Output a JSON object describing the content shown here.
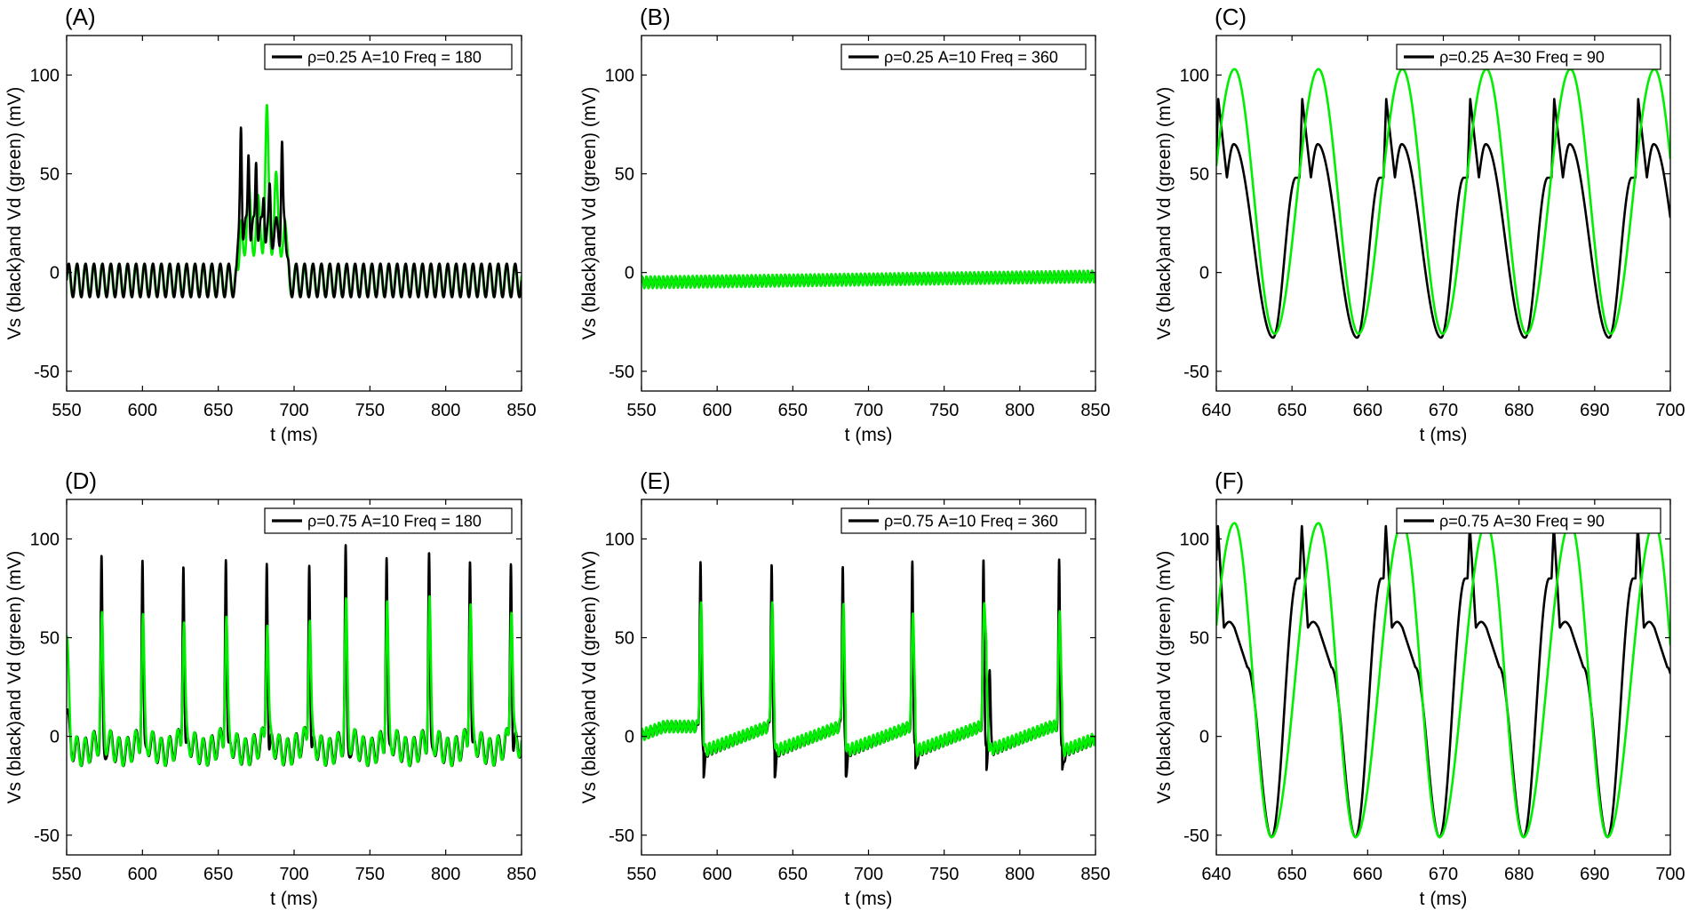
{
  "colors": {
    "vs": "#000000",
    "vd": "#00ee00",
    "axis": "#000000",
    "background": "#ffffff"
  },
  "chart_data": [
    {
      "type": "line",
      "panel": "(A)",
      "legend": "ρ=0.25 A=10 Freq = 180",
      "xlabel": "t (ms)",
      "ylabel": "Vs (black)and Vd (green) (mV)",
      "xlim": [
        550,
        850
      ],
      "ylim": [
        -60,
        120
      ],
      "xticks": [
        "550",
        "600",
        "650",
        "700",
        "750",
        "800",
        "850"
      ],
      "yticks": [
        "-50",
        "0",
        "50",
        "100"
      ],
      "series": [
        {
          "name": "Vs (black)",
          "color": "#000000",
          "description": "subthreshold oscillation around -4 mV, burst of spikes (peaks ~80, 65, 61, 67 mV) between 663 and 696 ms"
        },
        {
          "name": "Vd (green)",
          "color": "#00ee00",
          "description": "subthreshold oscillation around -4 mV, burst with peak ~85 mV at 682 ms"
        }
      ]
    },
    {
      "type": "line",
      "panel": "(B)",
      "legend": "ρ=0.25 A=10 Freq = 360",
      "xlabel": "t (ms)",
      "ylabel": "Vs (black)and Vd (green) (mV)",
      "xlim": [
        550,
        850
      ],
      "ylim": [
        -60,
        120
      ],
      "xticks": [
        "550",
        "600",
        "650",
        "700",
        "750",
        "800",
        "850"
      ],
      "yticks": [
        "-50",
        "0",
        "50",
        "100"
      ],
      "series": [
        {
          "name": "Vs (black)",
          "color": "#000000",
          "description": "fast small oscillation rising slowly from about -5 mV to -2 mV"
        },
        {
          "name": "Vd (green)",
          "color": "#00ee00",
          "description": "fast small oscillation rising slowly from about -5 mV to -2 mV"
        }
      ]
    },
    {
      "type": "line",
      "panel": "(C)",
      "legend": "ρ=0.25 A=30 Freq = 90",
      "xlabel": "t (ms)",
      "ylabel": "Vs (black)and Vd (green) (mV)",
      "xlim": [
        640,
        700
      ],
      "ylim": [
        -60,
        120
      ],
      "xticks": [
        "640",
        "650",
        "660",
        "670",
        "680",
        "690",
        "700"
      ],
      "yticks": [
        "-50",
        "0",
        "50",
        "100"
      ],
      "series": [
        {
          "name": "Vs (black)",
          "color": "#000000",
          "description": "period ~11.1 ms, spike ~88 mV, plateau ~65 mV, minimum ~-33 mV"
        },
        {
          "name": "Vd (green)",
          "color": "#00ee00",
          "description": "period ~11.1 ms, peak ~103 mV, minimum ~-31 mV"
        }
      ]
    },
    {
      "type": "line",
      "panel": "(D)",
      "legend": "ρ=0.75 A=10 Freq = 180",
      "xlabel": "t (ms)",
      "ylabel": "Vs (black)and Vd (green) (mV)",
      "xlim": [
        550,
        850
      ],
      "ylim": [
        -60,
        120
      ],
      "xticks": [
        "550",
        "600",
        "650",
        "700",
        "750",
        "800",
        "850"
      ],
      "yticks": [
        "-50",
        "0",
        "50",
        "100"
      ],
      "series": [
        {
          "name": "Vs (black)",
          "color": "#000000",
          "spike_times_ms": [
            573,
            600,
            627,
            655,
            682,
            710,
            734,
            761,
            789,
            816,
            843
          ],
          "description": "spikes ~87-95 mV over oscillation between -15 and 5 mV"
        },
        {
          "name": "Vd (green)",
          "color": "#00ee00",
          "description": "peaks ~60-70 mV at the same times, oscillation between -15 and 5 mV"
        }
      ]
    },
    {
      "type": "line",
      "panel": "(E)",
      "legend": "ρ=0.75 A=10 Freq = 360",
      "xlabel": "t (ms)",
      "ylabel": "Vs (black)and Vd (green) (mV)",
      "xlim": [
        550,
        850
      ],
      "ylim": [
        -60,
        120
      ],
      "xticks": [
        "550",
        "600",
        "650",
        "700",
        "750",
        "800",
        "850"
      ],
      "yticks": [
        "-50",
        "0",
        "50",
        "100"
      ],
      "series": [
        {
          "name": "Vs (black)",
          "color": "#000000",
          "spike_times_ms": [
            589,
            636,
            683,
            729,
            776,
            826
          ],
          "description": "spikes ~88-91 mV with ramps from -9 to 5 mV"
        },
        {
          "name": "Vd (green)",
          "color": "#00ee00",
          "description": "peaks ~62-70 mV at the same times"
        }
      ]
    },
    {
      "type": "line",
      "panel": "(F)",
      "legend": "ρ=0.75 A=30 Freq = 90",
      "xlabel": "t (ms)",
      "ylabel": "Vs (black)and Vd (green) (mV)",
      "xlim": [
        640,
        700
      ],
      "ylim": [
        -60,
        120
      ],
      "xticks": [
        "640",
        "650",
        "660",
        "670",
        "680",
        "690",
        "700"
      ],
      "yticks": [
        "-50",
        "0",
        "50",
        "100"
      ],
      "series": [
        {
          "name": "Vs (black)",
          "color": "#000000",
          "description": "period ~11.1 ms, spike ~107 mV, shoulder ~55 mV, minimum ~-51 mV"
        },
        {
          "name": "Vd (green)",
          "color": "#00ee00",
          "description": "period ~11.1 ms, peak ~108 mV, minimum ~-51 mV"
        }
      ]
    }
  ]
}
